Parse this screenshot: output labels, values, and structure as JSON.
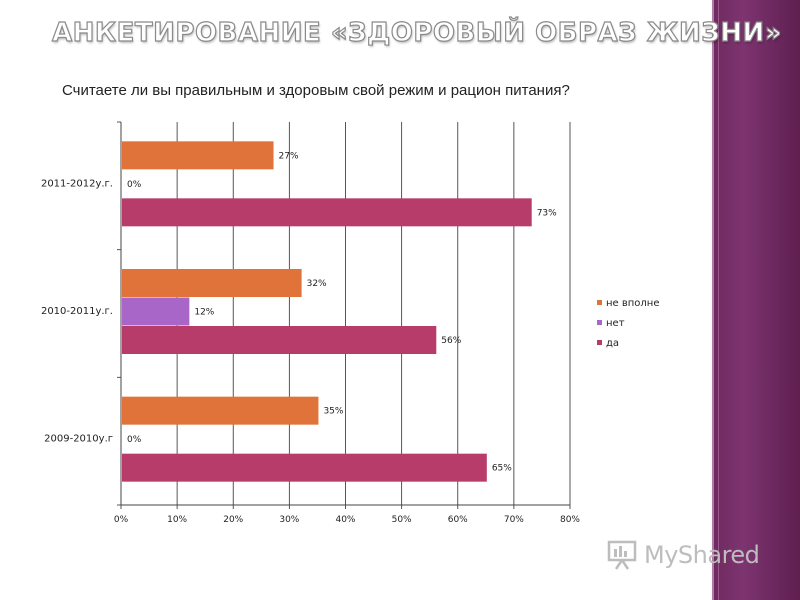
{
  "slide": {
    "title": "АНКЕТИРОВАНИЕ «ЗДОРОВЫЙ ОБРАЗ ЖИЗНИ»",
    "question": "Считаете ли вы правильным и здоровым свой режим и рацион питания?",
    "watermark": "MyShared",
    "watermark_icon": "presentation-board-icon",
    "band_color": "#6e2a5e"
  },
  "chart_data": {
    "type": "bar",
    "orientation": "horizontal",
    "categories": [
      "2011-2012у.г.",
      "2010-2011у.г.",
      "2009-2010у.г"
    ],
    "series": [
      {
        "name": "не вполне",
        "color": "#e0733a",
        "values": [
          27,
          32,
          35
        ],
        "labels": [
          "27%",
          "32%",
          "35%"
        ]
      },
      {
        "name": "нет",
        "color": "#a766c8",
        "values": [
          0,
          12,
          0
        ],
        "labels": [
          "0%",
          "12%",
          "0%"
        ]
      },
      {
        "name": "да",
        "color": "#b83c6a",
        "values": [
          73,
          56,
          65
        ],
        "labels": [
          "73%",
          "56%",
          "65%"
        ]
      }
    ],
    "xlim": [
      0,
      80
    ],
    "xticks": [
      "0%",
      "10%",
      "20%",
      "30%",
      "40%",
      "50%",
      "60%",
      "70%",
      "80%"
    ],
    "grid": true,
    "legend": "right"
  }
}
